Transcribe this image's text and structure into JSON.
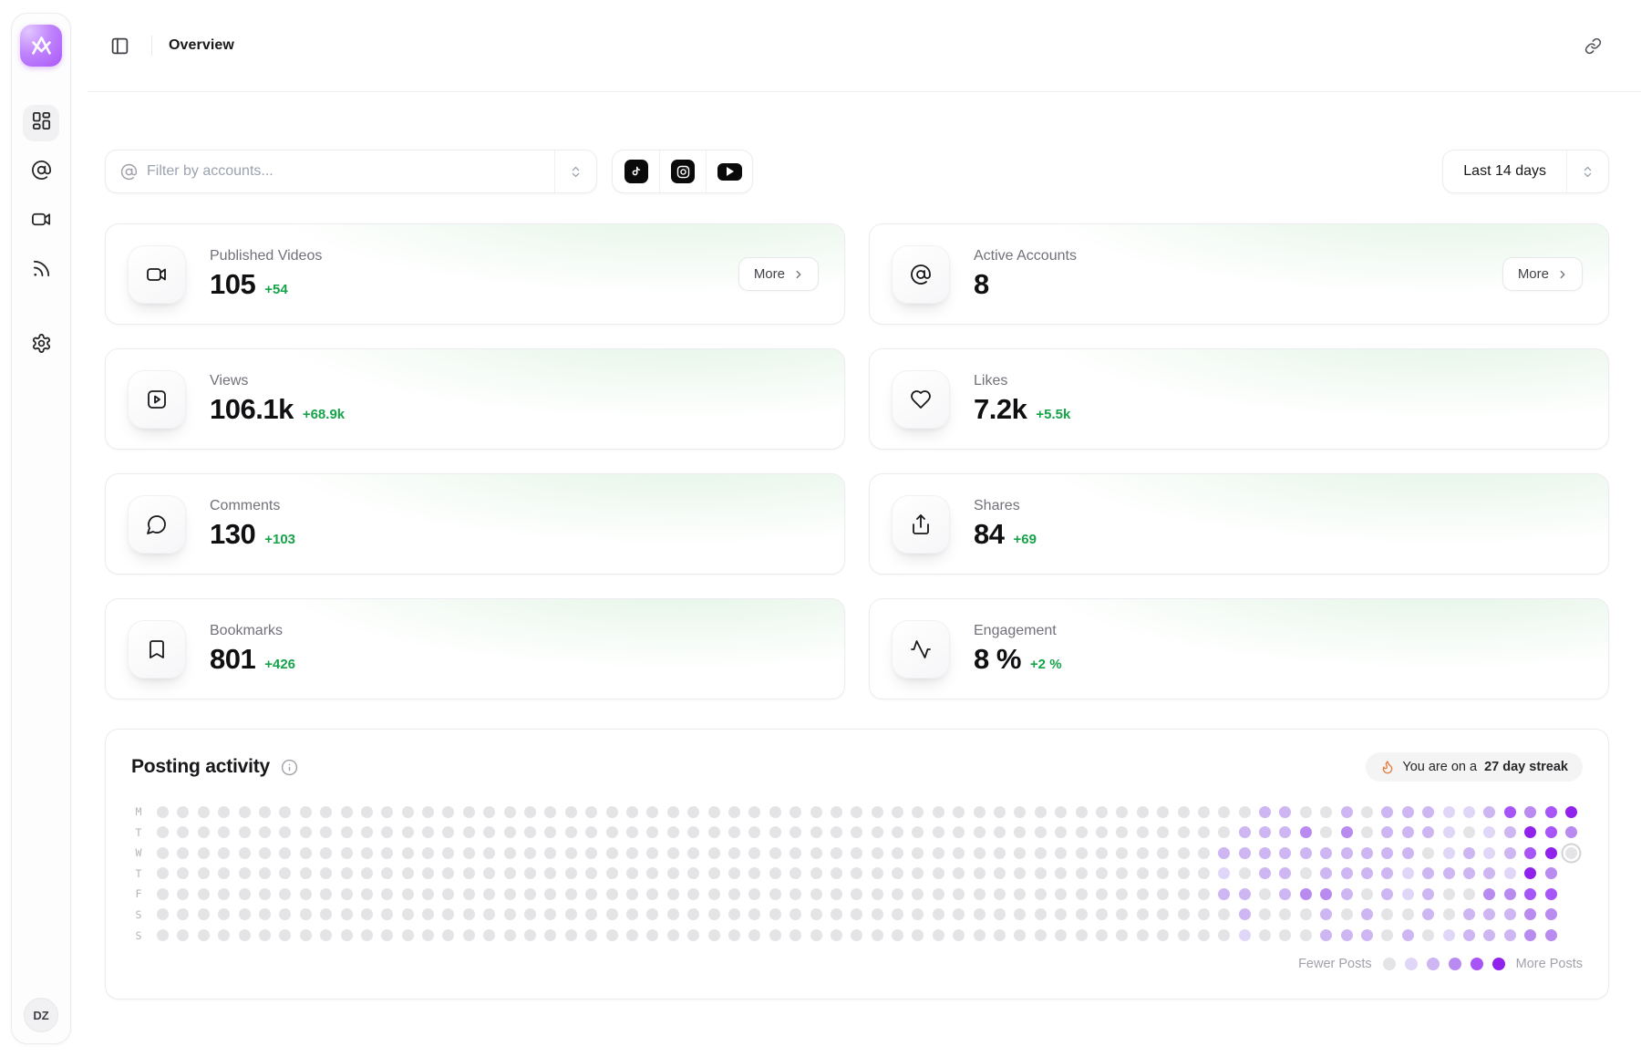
{
  "app": {
    "avatar_initials": "DZ"
  },
  "header": {
    "title": "Overview"
  },
  "sidebar": {
    "items": [
      {
        "name": "dashboard",
        "active": true
      },
      {
        "name": "accounts",
        "active": false
      },
      {
        "name": "videos",
        "active": false
      },
      {
        "name": "feed",
        "active": false
      },
      {
        "name": "settings",
        "active": false
      }
    ]
  },
  "filter": {
    "placeholder": "Filter by accounts...",
    "date_range": "Last 14 days",
    "platforms": [
      "tiktok",
      "instagram",
      "youtube"
    ]
  },
  "more_label": "More",
  "stats": [
    {
      "label": "Published Videos",
      "value": "105",
      "delta": "+54",
      "icon": "video-icon",
      "more": true
    },
    {
      "label": "Active Accounts",
      "value": "8",
      "delta": "",
      "icon": "at-sign-icon",
      "more": true
    },
    {
      "label": "Views",
      "value": "106.1k",
      "delta": "+68.9k",
      "icon": "play-square-icon",
      "more": false
    },
    {
      "label": "Likes",
      "value": "7.2k",
      "delta": "+5.5k",
      "icon": "heart-icon",
      "more": false
    },
    {
      "label": "Comments",
      "value": "130",
      "delta": "+103",
      "icon": "comment-icon",
      "more": false
    },
    {
      "label": "Shares",
      "value": "84",
      "delta": "+69",
      "icon": "share-icon",
      "more": false
    },
    {
      "label": "Bookmarks",
      "value": "801",
      "delta": "+426",
      "icon": "bookmark-icon",
      "more": false
    },
    {
      "label": "Engagement",
      "value": "8 %",
      "delta": "+2 %",
      "icon": "activity-icon",
      "more": false
    }
  ],
  "posting_activity": {
    "title": "Posting activity",
    "streak_prefix": "You are on a",
    "streak_highlight": "27 day streak",
    "day_labels": [
      "M",
      "T",
      "W",
      "T",
      "F",
      "S",
      "S"
    ],
    "weeks": 70,
    "rows_tail": [
      "0002200202221124345",
      "0022230302221012543",
      "022222222220121245R",
      "010220222212222153.",
      "022023320212003344.",
      "002000202002022233.",
      "001000222020122233."
    ],
    "level_colors": {
      "0": "#e4e4e7",
      "1": "#e0d7f8",
      "2": "#cdb6f2",
      "3": "#b98af0",
      "4": "#a855f7",
      "5": "#9122ec"
    },
    "legend": {
      "fewer": "Fewer Posts",
      "more": "More Posts",
      "colors": [
        "#e4e4e7",
        "#e0d7f8",
        "#cdb6f2",
        "#b98af0",
        "#a855f7",
        "#9122ec"
      ]
    }
  },
  "colors": {
    "accent_green": "#16a34a",
    "brand_purple": "#a855f7"
  }
}
